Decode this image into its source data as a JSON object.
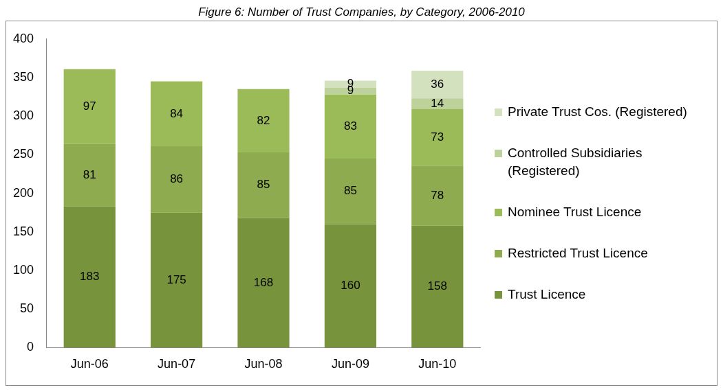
{
  "chart_data": {
    "type": "bar",
    "title": "Figure 6: Number of Trust Companies, by Category, 2006-2010",
    "categories": [
      "Jun-06",
      "Jun-07",
      "Jun-08",
      "Jun-09",
      "Jun-10"
    ],
    "stacked": true,
    "series": [
      {
        "name": "Trust Licence",
        "color": "#77933c",
        "values": [
          183,
          175,
          168,
          160,
          158
        ]
      },
      {
        "name": "Restricted Trust Licence",
        "color": "#8eab4f",
        "values": [
          81,
          86,
          85,
          85,
          78
        ]
      },
      {
        "name": "Nominee Trust Licence",
        "color": "#9bbb59",
        "values": [
          97,
          84,
          82,
          83,
          73
        ]
      },
      {
        "name": "Controlled Subsidiaries (Registered)",
        "color": "#bdd19a",
        "values": [
          null,
          null,
          null,
          9,
          14
        ]
      },
      {
        "name": "Private Trust Cos. (Registered)",
        "color": "#d4e1bf",
        "values": [
          null,
          null,
          null,
          9,
          36
        ]
      }
    ],
    "ylim": [
      0,
      400
    ],
    "yticks": [
      0,
      50,
      100,
      150,
      200,
      250,
      300,
      350,
      400
    ],
    "grid": false,
    "legend": "right",
    "data_labels": true
  }
}
